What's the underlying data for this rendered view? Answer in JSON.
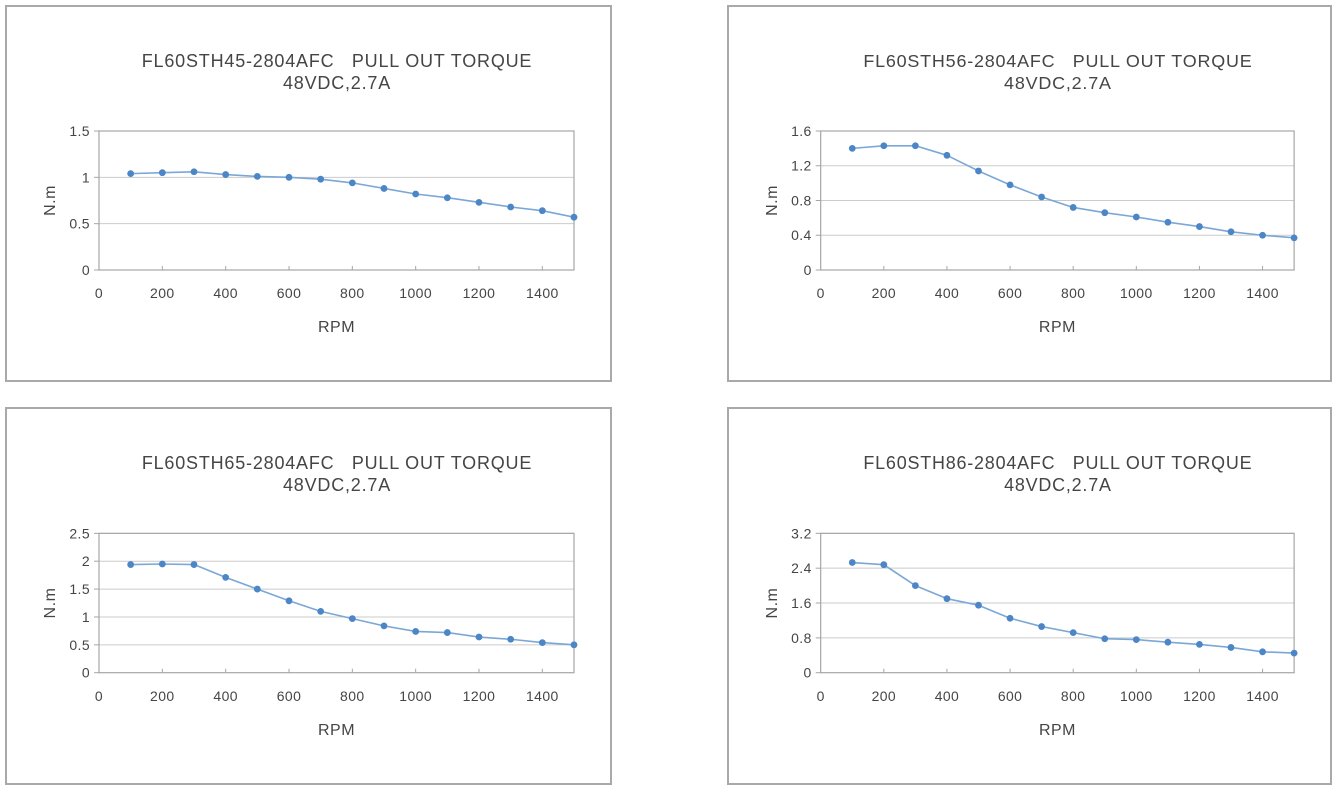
{
  "colors": {
    "line": "#7BA7D7",
    "marker": "#4D86C6",
    "gridline": "#CBCBCB",
    "axis": "#A6A6A6",
    "tick": "#A6A6A6",
    "text": "#454545",
    "panel_border": "#A9A9AC",
    "background": "#FFFFFF"
  },
  "chart_data": [
    {
      "type": "line",
      "title": "FL60STH45-2804AFC   PULL OUT TORQUE",
      "subtitle": "48VDC,2.7A",
      "xlabel": "RPM",
      "ylabel": "N.m",
      "x": [
        100,
        200,
        300,
        400,
        500,
        600,
        700,
        800,
        900,
        1000,
        1100,
        1200,
        1300,
        1400,
        1500
      ],
      "values": [
        1.04,
        1.05,
        1.06,
        1.03,
        1.01,
        1.0,
        0.98,
        0.94,
        0.88,
        0.82,
        0.78,
        0.73,
        0.68,
        0.64,
        0.57
      ],
      "xlim": [
        0,
        1500
      ],
      "ylim": [
        0,
        1.5
      ],
      "x_ticks": [
        0,
        200,
        400,
        600,
        800,
        1000,
        1200,
        1400
      ],
      "x_tick_labels": [
        "0",
        "200",
        "400",
        "600",
        "800",
        "1000",
        "1200",
        "1400"
      ],
      "y_ticks": [
        0,
        0.5,
        1,
        1.5
      ],
      "y_tick_labels": [
        "0",
        "0.5",
        "1",
        "1.5"
      ],
      "grid": "horizontal",
      "legend": "none"
    },
    {
      "type": "line",
      "title": "FL60STH56-2804AFC   PULL OUT TORQUE",
      "subtitle": "48VDC,2.7A",
      "xlabel": "RPM",
      "ylabel": "N.m",
      "x": [
        100,
        200,
        300,
        400,
        500,
        600,
        700,
        800,
        900,
        1000,
        1100,
        1200,
        1300,
        1400,
        1500
      ],
      "values": [
        1.4,
        1.43,
        1.43,
        1.32,
        1.14,
        0.98,
        0.84,
        0.72,
        0.66,
        0.61,
        0.55,
        0.5,
        0.44,
        0.4,
        0.37
      ],
      "xlim": [
        0,
        1500
      ],
      "ylim": [
        0,
        1.6
      ],
      "x_ticks": [
        0,
        200,
        400,
        600,
        800,
        1000,
        1200,
        1400
      ],
      "x_tick_labels": [
        "0",
        "200",
        "400",
        "600",
        "800",
        "1000",
        "1200",
        "1400"
      ],
      "y_ticks": [
        0,
        0.4,
        0.8,
        1.2,
        1.6
      ],
      "y_tick_labels": [
        "0",
        "0.4",
        "0.8",
        "1.2",
        "1.6"
      ],
      "grid": "horizontal",
      "legend": "none"
    },
    {
      "type": "line",
      "title": "FL60STH65-2804AFC   PULL OUT TORQUE",
      "subtitle": "48VDC,2.7A",
      "xlabel": "RPM",
      "ylabel": "N.m",
      "x": [
        100,
        200,
        300,
        400,
        500,
        600,
        700,
        800,
        900,
        1000,
        1100,
        1200,
        1300,
        1400,
        1500
      ],
      "values": [
        1.94,
        1.95,
        1.94,
        1.71,
        1.5,
        1.29,
        1.1,
        0.97,
        0.84,
        0.74,
        0.72,
        0.64,
        0.6,
        0.54,
        0.5
      ],
      "xlim": [
        0,
        1500
      ],
      "ylim": [
        0,
        2.5
      ],
      "x_ticks": [
        0,
        200,
        400,
        600,
        800,
        1000,
        1200,
        1400
      ],
      "x_tick_labels": [
        "0",
        "200",
        "400",
        "600",
        "800",
        "1000",
        "1200",
        "1400"
      ],
      "y_ticks": [
        0,
        0.5,
        1,
        1.5,
        2,
        2.5
      ],
      "y_tick_labels": [
        "0",
        "0.5",
        "1",
        "1.5",
        "2",
        "2.5"
      ],
      "grid": "horizontal",
      "legend": "none"
    },
    {
      "type": "line",
      "title": "FL60STH86-2804AFC   PULL OUT TORQUE",
      "subtitle": "48VDC,2.7A",
      "xlabel": "RPM",
      "ylabel": "N.m",
      "x": [
        100,
        200,
        300,
        400,
        500,
        600,
        700,
        800,
        900,
        1000,
        1100,
        1200,
        1300,
        1400,
        1500
      ],
      "values": [
        2.53,
        2.48,
        2.0,
        1.7,
        1.55,
        1.25,
        1.06,
        0.92,
        0.78,
        0.76,
        0.7,
        0.65,
        0.58,
        0.48,
        0.45
      ],
      "xlim": [
        0,
        1500
      ],
      "ylim": [
        0,
        3.2
      ],
      "x_ticks": [
        0,
        200,
        400,
        600,
        800,
        1000,
        1200,
        1400
      ],
      "x_tick_labels": [
        "0",
        "200",
        "400",
        "600",
        "800",
        "1000",
        "1200",
        "1400"
      ],
      "y_ticks": [
        0,
        0.8,
        1.6,
        2.4,
        3.2
      ],
      "y_tick_labels": [
        "0",
        "0.8",
        "1.6",
        "2.4",
        "3.2"
      ],
      "grid": "horizontal",
      "legend": "none"
    }
  ]
}
